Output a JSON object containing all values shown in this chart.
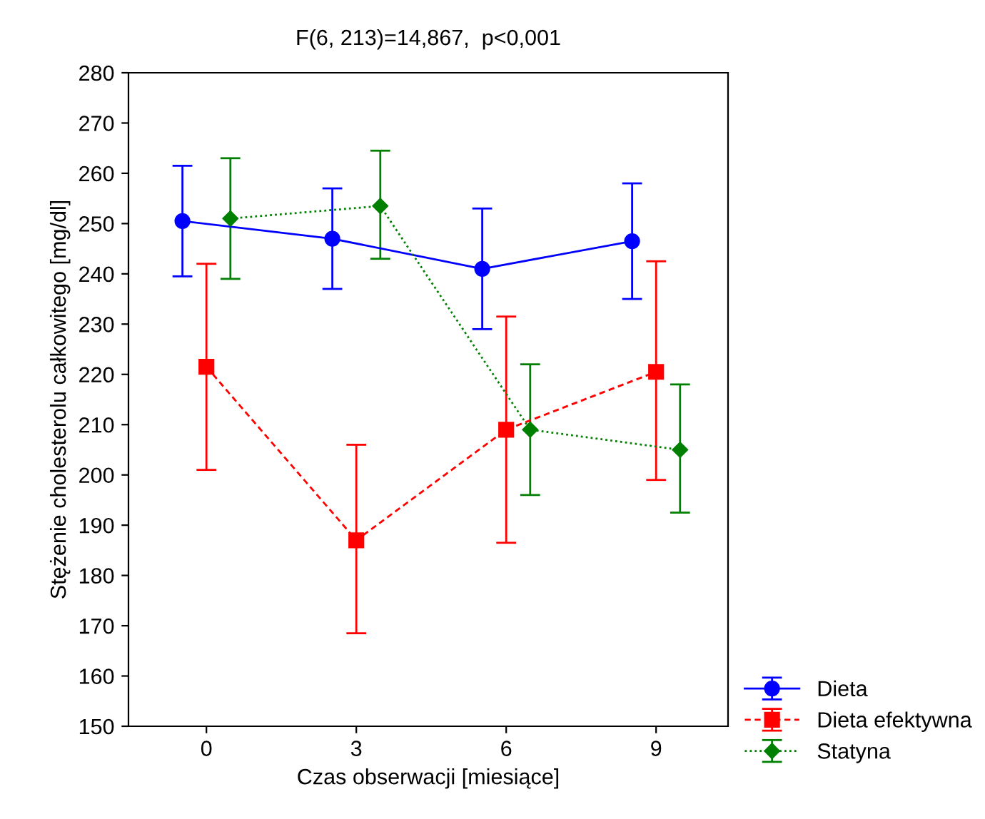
{
  "chart_data": {
    "type": "line",
    "title": "F(6, 213)=14,867,  p<0,001",
    "xlabel": "Czas obserwacji [miesiące]",
    "ylabel": "Stężenie cholesterolu całkowitego [mg/dl]",
    "categories": [
      "0",
      "3",
      "6",
      "9"
    ],
    "series": [
      {
        "name": "Dieta",
        "color": "#0000ff",
        "marker": "circle",
        "line_style": "solid",
        "values": [
          250.5,
          247,
          241,
          246.5
        ],
        "errors": [
          [
            239.5,
            261.5
          ],
          [
            237,
            257
          ],
          [
            229,
            253
          ],
          [
            235,
            258
          ]
        ]
      },
      {
        "name": "Dieta efektywna",
        "color": "#ff0000",
        "marker": "square",
        "line_style": "dashed",
        "values": [
          221.5,
          187,
          209,
          220.5
        ],
        "errors": [
          [
            201,
            242
          ],
          [
            168.5,
            206
          ],
          [
            186.5,
            231.5
          ],
          [
            199,
            242.5
          ]
        ]
      },
      {
        "name": "Statyna",
        "color": "#008000",
        "marker": "diamond",
        "line_style": "dotted",
        "values": [
          251,
          253.5,
          209,
          205
        ],
        "errors": [
          [
            239,
            263
          ],
          [
            243,
            264.5
          ],
          [
            196,
            222
          ],
          [
            192.5,
            218
          ]
        ]
      }
    ],
    "ylim": [
      150,
      280
    ],
    "yticks": [
      150,
      160,
      170,
      180,
      190,
      200,
      210,
      220,
      230,
      240,
      250,
      260,
      270,
      280
    ],
    "grid": false,
    "legend": "bottom right"
  }
}
